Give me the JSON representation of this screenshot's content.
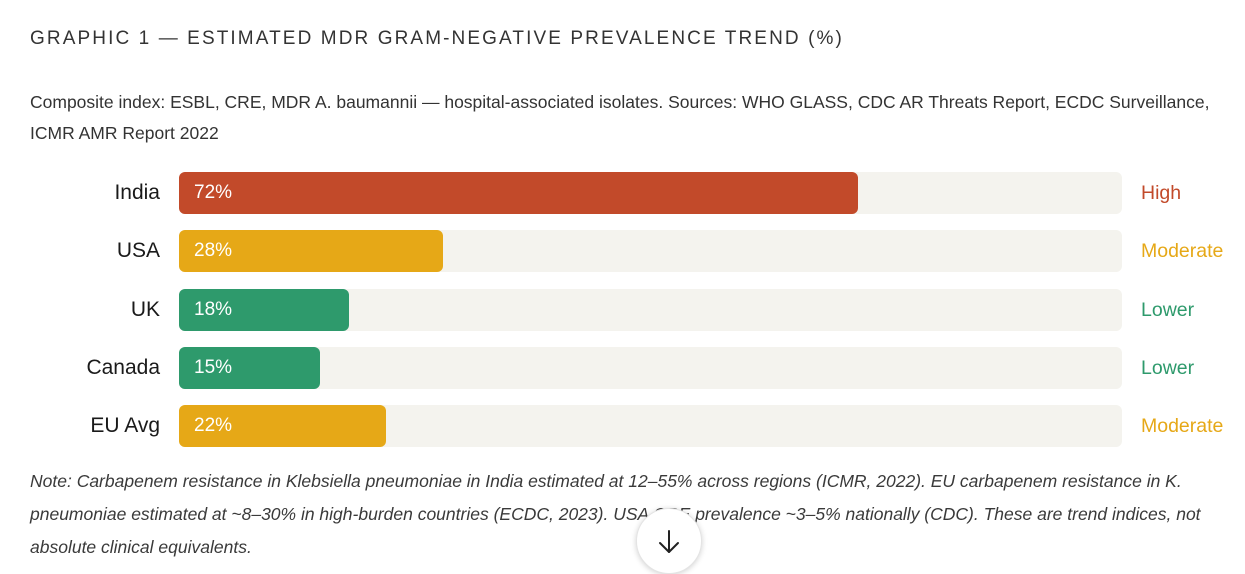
{
  "title": "GRAPHIC 1 — ESTIMATED MDR GRAM-NEGATIVE PREVALENCE TREND (%)",
  "subtitle": "Composite index: ESBL, CRE, MDR A. baumannii — hospital-associated isolates. Sources: WHO GLASS, CDC AR Threats Report, ECDC Surveillance, ICMR AMR Report 2022",
  "note": "Note: Carbapenem resistance in Klebsiella pneumoniae in India estimated at 12–55% across regions (ICMR, 2022). EU carbapenem resistance in K. pneumoniae estimated at ~8–30% in high-burden countries (ECDC, 2023). USA CRE prevalence ~3–5% nationally (CDC). These are trend indices, not absolute clinical equivalents.",
  "scroll_button": {
    "icon": "arrow-down-icon"
  },
  "colors": {
    "high": "#c24a2a",
    "moderate": "#e6a817",
    "lower": "#2e9a6c",
    "track": "#f4f3ee"
  },
  "chart_data": {
    "type": "bar",
    "orientation": "horizontal",
    "xlim": [
      0,
      100
    ],
    "categories": [
      "India",
      "USA",
      "UK",
      "Canada",
      "EU Avg"
    ],
    "values": [
      72,
      28,
      18,
      15,
      22
    ],
    "value_labels": [
      "72%",
      "28%",
      "18%",
      "15%",
      "22%"
    ],
    "levels": [
      "High",
      "Moderate",
      "Lower",
      "Lower",
      "Moderate"
    ]
  }
}
